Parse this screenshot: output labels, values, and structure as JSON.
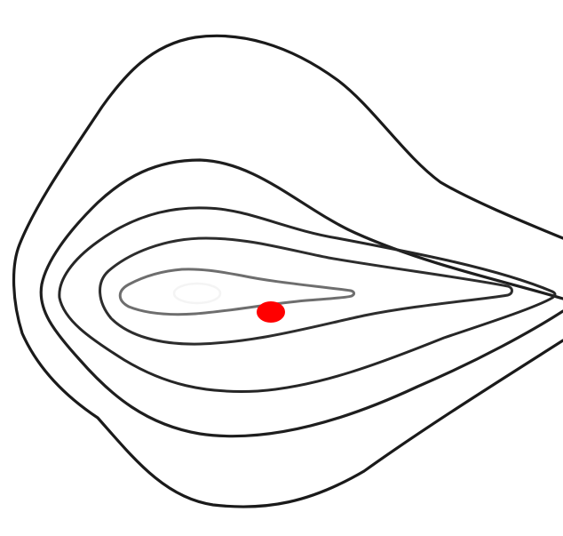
{
  "diagram": {
    "kind": "contour-plot",
    "contour_levels": 7,
    "contour_colors": [
      "#1a1a1a",
      "#1e1e1e",
      "#262626",
      "#2d2d2d",
      "#333333",
      "#6e6e6e",
      "#f4f4f4"
    ],
    "marker": {
      "shape": "filled-circle",
      "color": "#ff0000"
    }
  }
}
